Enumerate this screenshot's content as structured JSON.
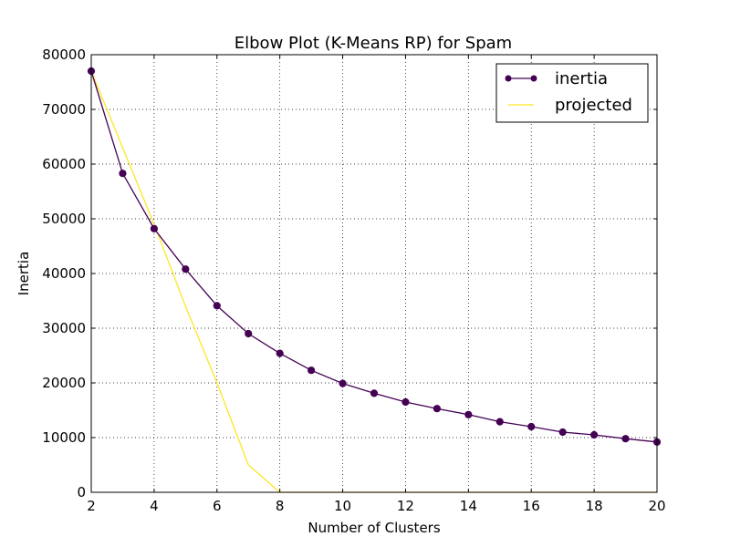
{
  "chart_data": {
    "type": "line",
    "title": "Elbow Plot (K-Means RP) for Spam",
    "xlabel": "Number of Clusters",
    "ylabel": "Inertia",
    "xlim": [
      2,
      20
    ],
    "ylim": [
      0,
      80000
    ],
    "x_ticks": [
      "2",
      "4",
      "6",
      "8",
      "10",
      "12",
      "14",
      "16",
      "18",
      "20"
    ],
    "y_ticks": [
      "0",
      "10000",
      "20000",
      "30000",
      "40000",
      "50000",
      "60000",
      "70000",
      "80000"
    ],
    "grid": true,
    "legend_position": "upper right",
    "series": [
      {
        "name": "inertia",
        "color": "#440154",
        "marker": "circle",
        "x": [
          2,
          3,
          4,
          5,
          6,
          7,
          8,
          9,
          10,
          11,
          12,
          13,
          14,
          15,
          16,
          17,
          18,
          19,
          20
        ],
        "y": [
          77000,
          58300,
          48200,
          40800,
          34100,
          29000,
          25400,
          22300,
          19900,
          18100,
          16500,
          15300,
          14200,
          12900,
          12000,
          11000,
          10500,
          9800,
          9200
        ]
      },
      {
        "name": "projected",
        "color": "#fde725",
        "marker": "none",
        "x": [
          2,
          3,
          4,
          5,
          6,
          7,
          8,
          9,
          10,
          11,
          12,
          13,
          14,
          15,
          16,
          17,
          18,
          19,
          20
        ],
        "y": [
          77000,
          63000,
          49000,
          34000,
          20000,
          5000,
          0,
          0,
          0,
          0,
          0,
          0,
          0,
          0,
          0,
          0,
          0,
          0,
          0
        ]
      }
    ]
  }
}
